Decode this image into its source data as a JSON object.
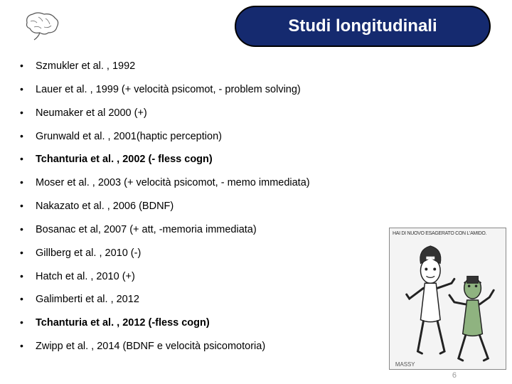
{
  "title": "Studi longitudinali",
  "bullets": [
    {
      "text": "Szmukler et al. , 1992",
      "bold": false
    },
    {
      "text": "Lauer et al. , 1999 (+ velocità psicomot, - problem solving)",
      "bold": false
    },
    {
      "text": "Neumaker et al 2000 (+)",
      "bold": false
    },
    {
      "text": "Grunwald et al. , 2001(haptic perception)",
      "bold": false
    },
    {
      "text": "Tchanturia et al. , 2002 (- fless cogn)",
      "bold": true
    },
    {
      "text": "Moser et al. , 2003 (+ velocità psicomot, - memo immediata)",
      "bold": false
    },
    {
      "text": "Nakazato et al. , 2006 (BDNF)",
      "bold": false
    },
    {
      "text": "Bosanac et al, 2007 (+ att, -memoria immediata)",
      "bold": false
    },
    {
      "text": "Gillberg et al. , 2010 (-)",
      "bold": false
    },
    {
      "text": "Hatch et al. , 2010 (+)",
      "bold": false
    },
    {
      "text": "Galimberti et al. , 2012",
      "bold": false
    },
    {
      "text": "Tchanturia et al. , 2012 (-fless cogn)",
      "bold": true
    },
    {
      "text": "Zwipp et al. , 2014 (BDNF e velocità psicomotoria)",
      "bold": false
    }
  ],
  "cartoon_caption": "HAI DI NUOVO ESAGERATO CON L'AMIDO.",
  "cartoon_signature": "MASSY",
  "page_number": "6",
  "colors": {
    "pill_bg": "#152a6f",
    "pill_border": "#000000",
    "text": "#000000",
    "title_text": "#ffffff",
    "background": "#ffffff"
  }
}
